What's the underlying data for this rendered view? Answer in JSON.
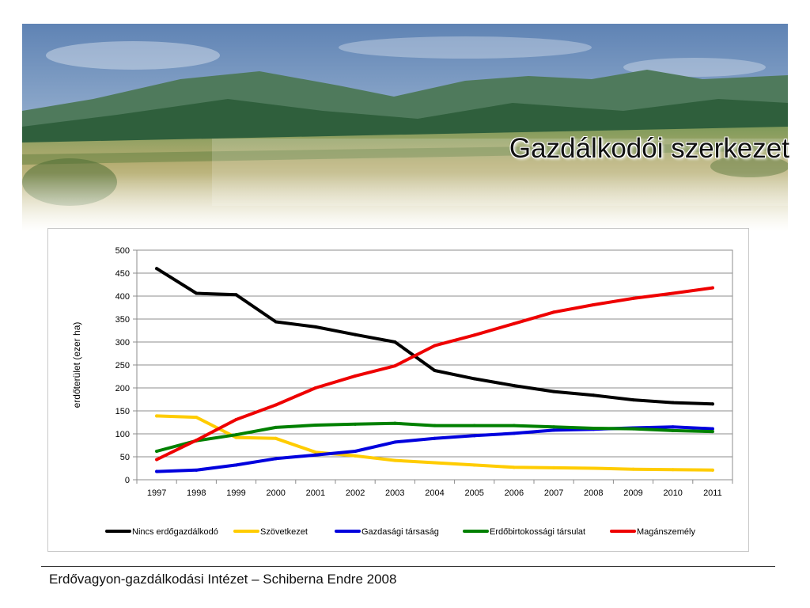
{
  "slide": {
    "title": "Gazdálkodói szerkezet",
    "footer": "Erdővagyon-gazdálkodási Intézet – Schiberna Endre 2008"
  },
  "banner": {
    "description_icon": "landscape-photo",
    "colors": {
      "sky": "#6f8fb8",
      "mountains": "#3d6e4a",
      "meadow": "#b9b27a"
    }
  },
  "chart_data": {
    "type": "line",
    "title": "",
    "xlabel": "",
    "ylabel": "erdőterület (ezer ha)",
    "ylim": [
      0,
      500
    ],
    "yticks": [
      "0",
      "50",
      "100",
      "150",
      "200",
      "250",
      "300",
      "350",
      "400",
      "450",
      "500"
    ],
    "grid": true,
    "legend_position": "bottom",
    "categories": [
      "1997",
      "1998",
      "1999",
      "2000",
      "2001",
      "2002",
      "2003",
      "2004",
      "2005",
      "2006",
      "2007",
      "2008",
      "2009",
      "2010",
      "2011"
    ],
    "series": [
      {
        "name": "Nincs erdőgazdálkodó",
        "color": "#000000",
        "values": [
          460,
          406,
          403,
          344,
          333,
          316,
          300,
          238,
          220,
          205,
          192,
          184,
          174,
          168,
          165
        ]
      },
      {
        "name": "Szövetkezet",
        "color": "#ffcc00",
        "values": [
          139,
          136,
          92,
          90,
          60,
          52,
          42,
          37,
          32,
          27,
          26,
          25,
          23,
          22,
          21
        ]
      },
      {
        "name": "Gazdasági társaság",
        "color": "#0000dd",
        "values": [
          18,
          21,
          32,
          46,
          54,
          62,
          82,
          90,
          96,
          101,
          108,
          110,
          113,
          115,
          111
        ]
      },
      {
        "name": "Erdőbirtokossági társulat",
        "color": "#008000",
        "values": [
          62,
          85,
          98,
          114,
          119,
          121,
          123,
          118,
          118,
          118,
          115,
          112,
          111,
          107,
          105
        ]
      },
      {
        "name": "Magánszemély",
        "color": "#ee0000",
        "values": [
          44,
          86,
          131,
          163,
          200,
          226,
          248,
          292,
          315,
          340,
          365,
          381,
          395,
          406,
          418
        ]
      }
    ]
  }
}
